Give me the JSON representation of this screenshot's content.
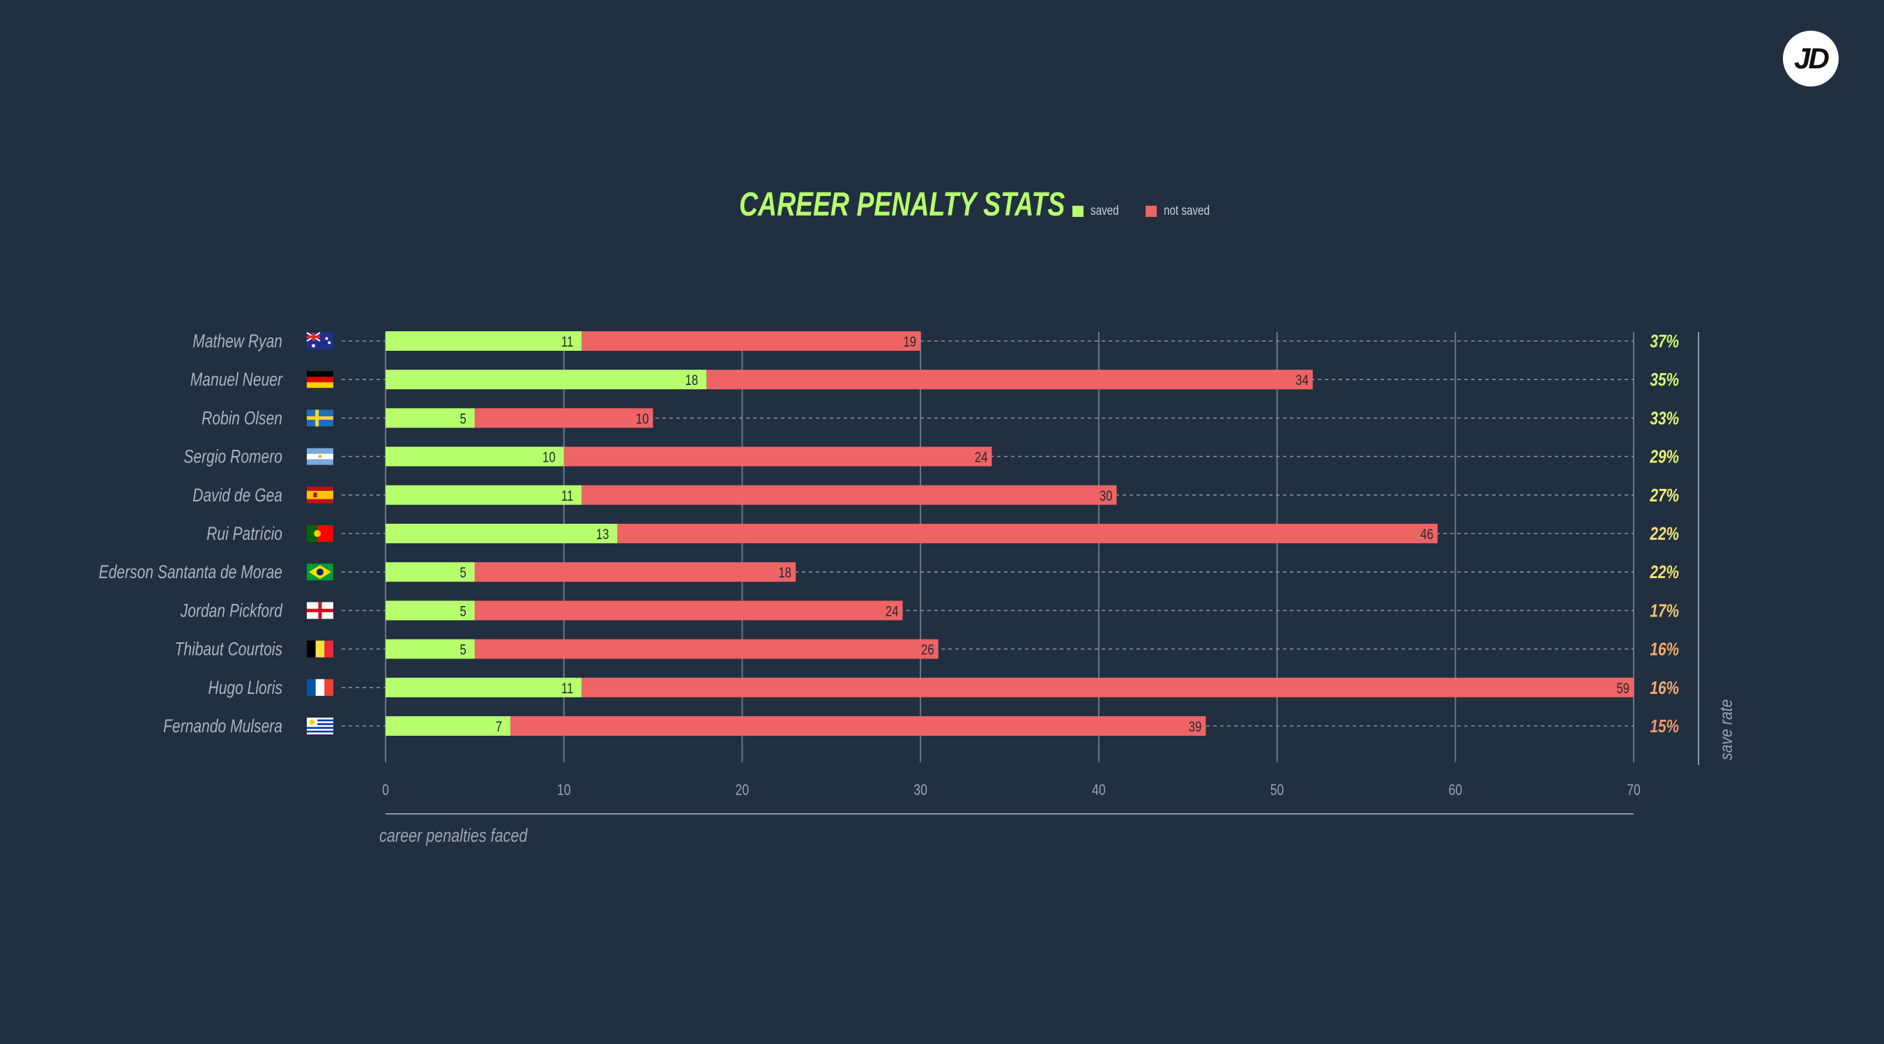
{
  "brand": {
    "logo_text": "JD"
  },
  "colors": {
    "background": "#222f40",
    "saved": "#b7ff6d",
    "not_saved": "#ee6464",
    "grid": "#6b7788",
    "text": "#9aa4b2"
  },
  "chart_data": {
    "type": "bar",
    "orientation": "horizontal",
    "stacked": true,
    "title": "CAREER PENALTY STATS",
    "xlabel": "career penalties faced",
    "right_axis_label": "save rate",
    "xlim": [
      0,
      70
    ],
    "xticks": [
      0,
      10,
      20,
      30,
      40,
      50,
      60,
      70
    ],
    "grid": true,
    "legend_position": "top",
    "categories": [
      "Mathew Ryan",
      "Manuel Neuer",
      "Robin Olsen",
      "Sergio Romero",
      "David de Gea",
      "Rui Patrício",
      "Ederson Santanta de Morae",
      "Jordan Pickford",
      "Thibaut Courtois",
      "Hugo Lloris",
      "Fernando Mulsera"
    ],
    "flags": [
      "australia-flag-icon",
      "germany-flag-icon",
      "sweden-flag-icon",
      "argentina-flag-icon",
      "spain-flag-icon",
      "portugal-flag-icon",
      "brazil-flag-icon",
      "england-flag-icon",
      "belgium-flag-icon",
      "france-flag-icon",
      "uruguay-flag-icon"
    ],
    "series": [
      {
        "name": "saved",
        "color": "#b7ff6d",
        "values": [
          11,
          18,
          5,
          10,
          11,
          13,
          5,
          5,
          5,
          11,
          7
        ]
      },
      {
        "name": "not saved",
        "color": "#ee6464",
        "values": [
          19,
          34,
          10,
          24,
          30,
          46,
          18,
          24,
          26,
          59,
          39
        ]
      }
    ],
    "save_rate": [
      "37%",
      "35%",
      "33%",
      "29%",
      "27%",
      "22%",
      "22%",
      "17%",
      "16%",
      "16%",
      "15%"
    ],
    "save_rate_colors": [
      "#c8ff72",
      "#d4fb72",
      "#def873",
      "#e8f474",
      "#f1ef75",
      "#f6e274",
      "#f6e274",
      "#f5c472",
      "#f4ab70",
      "#f4ab70",
      "#f09a6c"
    ]
  }
}
